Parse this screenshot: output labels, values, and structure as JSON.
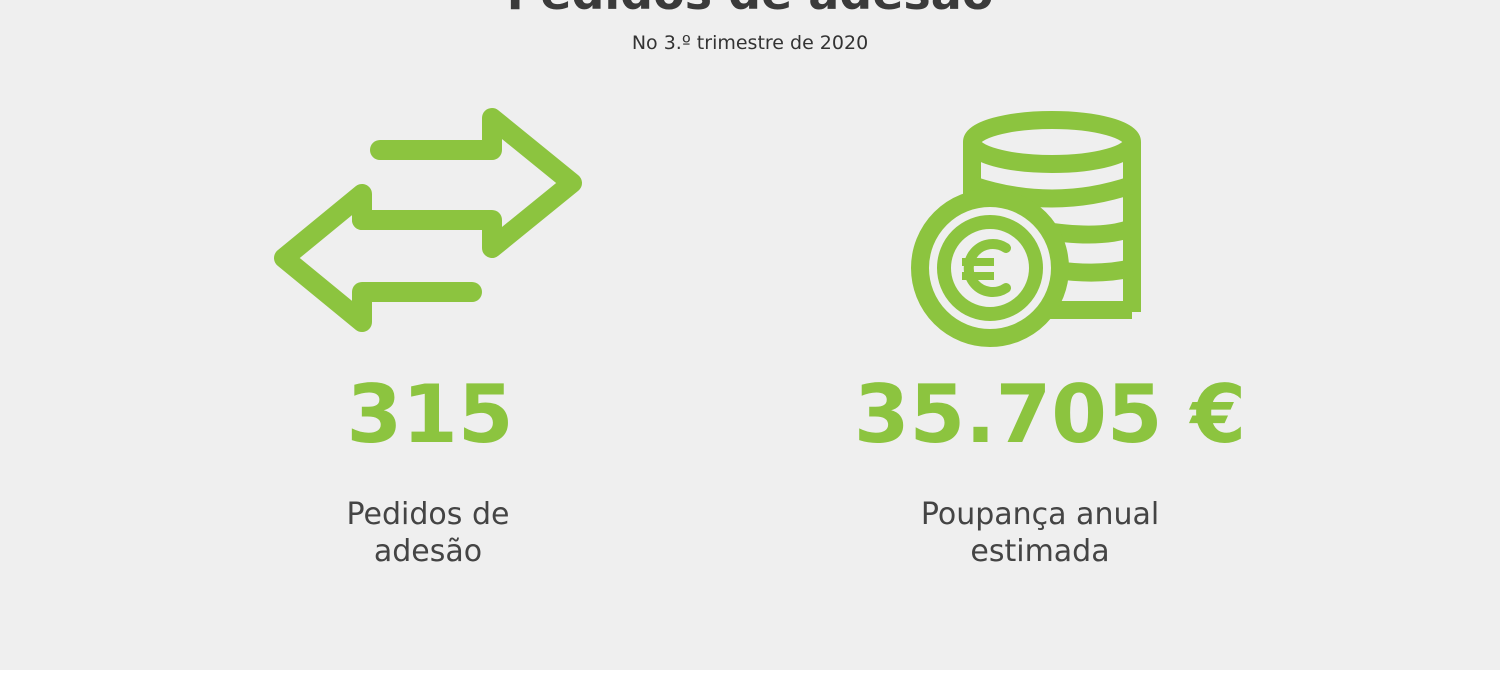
{
  "header": {
    "title": "Pedidos de adesão",
    "subtitle": "No 3.º trimestre de 2020"
  },
  "stats": [
    {
      "value": "315",
      "label": "Pedidos de adesão"
    },
    {
      "value": "35.705 €",
      "label": "Poupança anual estimada"
    }
  ]
}
